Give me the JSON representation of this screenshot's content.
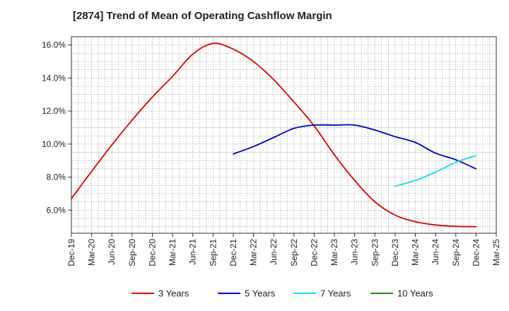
{
  "chart_data": {
    "type": "line",
    "title": "[2874]  Trend of Mean of Operating Cashflow Margin",
    "xlabel": "",
    "ylabel": "",
    "x_ticks": [
      "Dec-19",
      "Mar-20",
      "Jun-20",
      "Sep-20",
      "Dec-20",
      "Mar-21",
      "Jun-21",
      "Sep-21",
      "Dec-21",
      "Mar-22",
      "Jun-22",
      "Sep-22",
      "Dec-22",
      "Mar-23",
      "Jun-23",
      "Sep-23",
      "Dec-23",
      "Mar-24",
      "Jun-24",
      "Sep-24",
      "Dec-24",
      "Mar-25"
    ],
    "y_ticks": [
      "6.0%",
      "8.0%",
      "10.0%",
      "12.0%",
      "14.0%",
      "16.0%"
    ],
    "y_tick_values": [
      6,
      8,
      10,
      12,
      14,
      16
    ],
    "ylim": [
      4.6,
      16.5
    ],
    "grid": true,
    "legend_position": "bottom",
    "series": [
      {
        "name": "3 Years",
        "color": "#dd0000",
        "x": [
          "Dec-19",
          "Mar-20",
          "Jun-20",
          "Sep-20",
          "Dec-20",
          "Mar-21",
          "Jun-21",
          "Sep-21",
          "Dec-21",
          "Mar-22",
          "Jun-22",
          "Sep-22",
          "Dec-22",
          "Mar-23",
          "Jun-23",
          "Sep-23",
          "Dec-23",
          "Mar-24",
          "Jun-24",
          "Sep-24",
          "Dec-24"
        ],
        "values": [
          6.7,
          8.35,
          9.95,
          11.45,
          12.85,
          14.1,
          15.45,
          16.1,
          15.75,
          15.0,
          13.9,
          12.55,
          11.1,
          9.35,
          7.8,
          6.5,
          5.7,
          5.3,
          5.1,
          5.02,
          5.0
        ]
      },
      {
        "name": "5 Years",
        "color": "#0000cc",
        "x": [
          "Dec-21",
          "Mar-22",
          "Jun-22",
          "Sep-22",
          "Dec-22",
          "Mar-23",
          "Jun-23",
          "Sep-23",
          "Dec-23",
          "Mar-24",
          "Jun-24",
          "Sep-24",
          "Dec-24"
        ],
        "values": [
          9.4,
          9.85,
          10.4,
          10.95,
          11.15,
          11.15,
          11.15,
          10.85,
          10.45,
          10.1,
          9.45,
          9.05,
          8.5
        ]
      },
      {
        "name": "7 Years",
        "color": "#00e5ee",
        "x": [
          "Dec-23",
          "Mar-24",
          "Jun-24",
          "Sep-24",
          "Dec-24"
        ],
        "values": [
          7.45,
          7.8,
          8.3,
          8.9,
          9.3
        ]
      },
      {
        "name": "10 Years",
        "color": "#228b22",
        "x": [],
        "values": []
      }
    ]
  }
}
